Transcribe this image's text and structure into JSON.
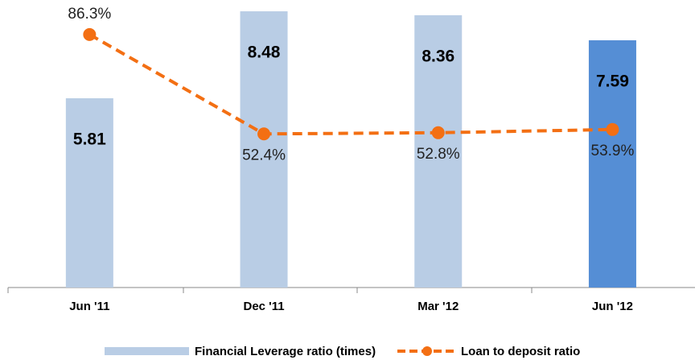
{
  "chart_data": {
    "type": "bar",
    "categories": [
      "Jun '11",
      "Dec '11",
      "Mar '12",
      "Jun '12"
    ],
    "ylim": [
      0,
      9
    ],
    "y2lim": [
      0,
      100
    ],
    "series": [
      {
        "name": "Financial Leverage ratio (times)",
        "type": "bar",
        "color": "#b9cde5",
        "colors": [
          "#b9cde5",
          "#b9cde5",
          "#b9cde5",
          "#558ed5"
        ],
        "values": [
          5.81,
          8.48,
          8.36,
          7.59
        ]
      },
      {
        "name": "Loan to deposit ratio",
        "type": "line",
        "axis": "y2",
        "color": "#f36f13",
        "values": [
          86.3,
          52.4,
          52.8,
          53.9
        ],
        "value_labels": [
          "86.3%",
          "52.4%",
          "52.8%",
          "53.9%"
        ]
      }
    ]
  }
}
